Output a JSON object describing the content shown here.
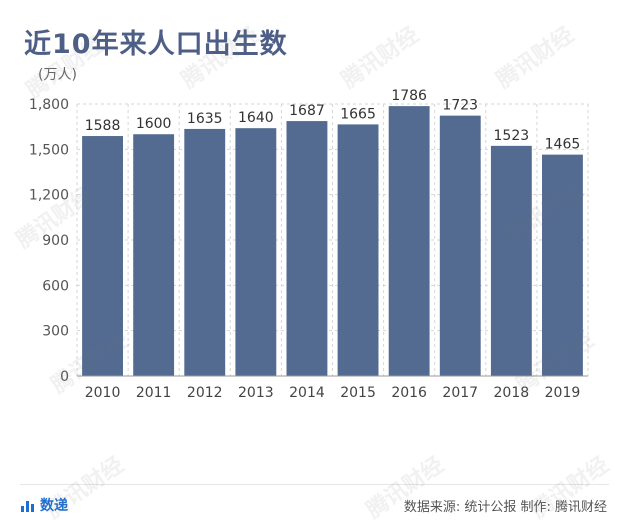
{
  "title": "近10年来人口出生数",
  "unit": "(万人)",
  "footer": {
    "brand": "数递",
    "source": "数据来源: 统计公报  制作: 腾讯财经"
  },
  "watermark": "腾讯财经",
  "colors": {
    "bar": "#536b91",
    "title": "#4d5f86",
    "grid": "#d6d6d6",
    "brand": "#1f6fd1"
  },
  "chart_data": {
    "type": "bar",
    "title": "近10年来人口出生数",
    "ylabel": "(万人)",
    "ylim": [
      0,
      1800
    ],
    "yticks": [
      0,
      300,
      600,
      900,
      1200,
      1500,
      1800
    ],
    "ytick_labels": [
      "0",
      "300",
      "600",
      "900",
      "1,200",
      "1,500",
      "1,800"
    ],
    "categories": [
      "2010",
      "2011",
      "2012",
      "2013",
      "2014",
      "2015",
      "2016",
      "2017",
      "2018",
      "2019"
    ],
    "values": [
      1588,
      1600,
      1635,
      1640,
      1687,
      1665,
      1786,
      1723,
      1523,
      1465
    ],
    "grid": true
  }
}
